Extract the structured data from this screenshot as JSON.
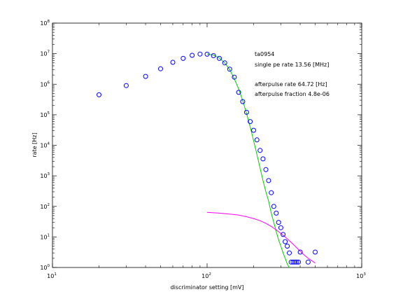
{
  "chart_data": {
    "type": "scatter",
    "xscale": "log",
    "yscale": "log",
    "xlim": [
      10,
      1000
    ],
    "ylim": [
      1,
      100000000
    ],
    "xlabel": "discriminator setting [mV]",
    "ylabel": "rate [Hz]",
    "grid": false,
    "x_ticks": [
      {
        "base": "10",
        "exp": "1",
        "value": 10
      },
      {
        "base": "10",
        "exp": "2",
        "value": 100
      },
      {
        "base": "10",
        "exp": "3",
        "value": 1000
      }
    ],
    "y_ticks": [
      {
        "base": "10",
        "exp": "0",
        "value": 1
      },
      {
        "base": "10",
        "exp": "1",
        "value": 10
      },
      {
        "base": "10",
        "exp": "2",
        "value": 100
      },
      {
        "base": "10",
        "exp": "3",
        "value": 1000
      },
      {
        "base": "10",
        "exp": "4",
        "value": 10000
      },
      {
        "base": "10",
        "exp": "5",
        "value": 100000
      },
      {
        "base": "10",
        "exp": "6",
        "value": 1000000
      },
      {
        "base": "10",
        "exp": "7",
        "value": 10000000
      },
      {
        "base": "10",
        "exp": "8",
        "value": 100000000
      }
    ],
    "annotations": [
      "ta0954",
      "single pe rate 13.56 [MHz]",
      "afterpulse rate 64.72 [Hz]",
      "afterpulse fraction 4.8e-06"
    ],
    "series": [
      {
        "marker": "circle",
        "color": "#0000ff",
        "x": [
          20,
          30,
          40,
          50,
          60,
          70,
          80,
          90,
          100,
          110,
          120,
          130,
          140,
          150,
          160,
          170,
          180,
          190,
          200,
          210,
          220,
          230,
          240,
          250,
          260,
          270,
          280,
          290,
          300,
          310,
          320,
          330,
          340,
          350,
          360,
          370,
          380,
          390,
          400,
          450,
          500
        ],
        "y": [
          450000,
          900000,
          1800000,
          3200000,
          5200000,
          7000000,
          8800000,
          9700000,
          9600000,
          8600000,
          7000000,
          5000000,
          3100000,
          1700000,
          540000,
          270000,
          120000,
          60000,
          31000,
          15000,
          6800,
          3600,
          1600,
          700,
          280,
          100,
          60,
          30,
          20,
          12,
          7,
          5,
          3,
          1.5,
          1.5,
          1.5,
          1.5,
          1.5,
          3.2,
          1.5,
          3.2
        ]
      },
      {
        "style": "line",
        "color": "#00cc00",
        "x": [
          100,
          110,
          120,
          130,
          140,
          150,
          160,
          170,
          180,
          190,
          200,
          210,
          220,
          230,
          240,
          250,
          260,
          270,
          280,
          290,
          300,
          310,
          320,
          330,
          340
        ],
        "y": [
          9800000,
          9000000,
          7200000,
          5000000,
          3000000,
          1500000,
          700000,
          290000,
          110000,
          40000,
          14000,
          5000,
          1800,
          700,
          300,
          150,
          60,
          30,
          15,
          8,
          5,
          3,
          2,
          1.3,
          1
        ]
      },
      {
        "style": "line",
        "color": "#ff00ff",
        "x": [
          100,
          120,
          140,
          160,
          180,
          200,
          220,
          240,
          260,
          280,
          300,
          320,
          340,
          360,
          380,
          400,
          420,
          450,
          480,
          500
        ],
        "y": [
          64,
          60,
          56,
          52,
          46,
          40,
          34,
          28,
          22,
          17,
          13,
          10,
          7.5,
          5.8,
          4.4,
          3.4,
          2.7,
          2.0,
          1.6,
          1.4
        ]
      }
    ]
  }
}
